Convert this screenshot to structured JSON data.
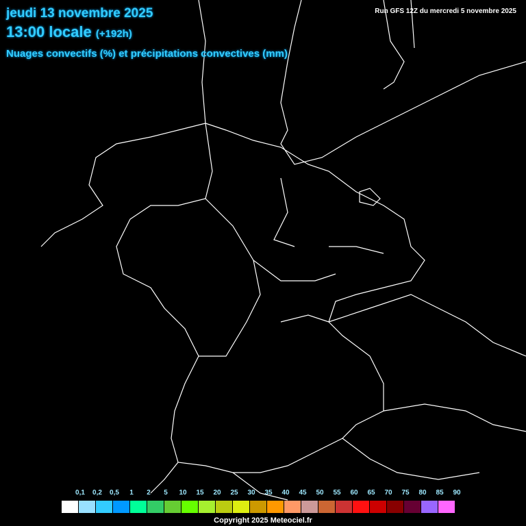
{
  "header": {
    "date": "jeudi 13 novembre 2025",
    "time": "13:00 locale",
    "lead": "(+192h)",
    "parameter": "Nuages convectifs (%) et précipitations convectives (mm)",
    "run": "Run GFS 12Z du mercredi 5 novembre 2025"
  },
  "legend": {
    "labels": [
      "0,1",
      "0,2",
      "0,5",
      "1",
      "2",
      "5",
      "10",
      "15",
      "20",
      "25",
      "30",
      "35",
      "40",
      "45",
      "50",
      "55",
      "60",
      "65",
      "70",
      "75",
      "80",
      "85",
      "90"
    ],
    "colors": [
      "#ffffff",
      "#99e0ff",
      "#33ccff",
      "#0099ff",
      "#00ff99",
      "#33cc66",
      "#66cc33",
      "#66ff00",
      "#a6ef2f",
      "#bbcc11",
      "#ddee11",
      "#cc9900",
      "#ff9900",
      "#ff9966",
      "#cc9999",
      "#cc6633",
      "#cc3333",
      "#ff1111",
      "#cc0000",
      "#880000",
      "#660033",
      "#9966ff",
      "#ff66ff"
    ]
  },
  "footer": {
    "copyright": "Copyright 2025 Meteociel.fr"
  },
  "map": {
    "outline_color": "#ffffff",
    "background": "#000000"
  }
}
